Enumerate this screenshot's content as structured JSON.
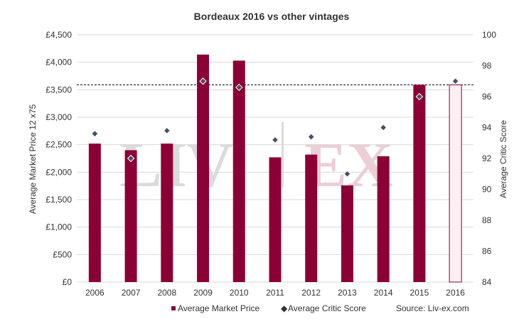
{
  "chart_data": {
    "type": "bar",
    "title": "Bordeaux 2016 vs other vintages",
    "categories": [
      "2006",
      "2007",
      "2008",
      "2009",
      "2010",
      "2011",
      "2012",
      "2013",
      "2014",
      "2015",
      "2016"
    ],
    "series": [
      {
        "name": "Average Market Price",
        "type": "bar",
        "axis": "left",
        "values": [
          2520,
          2400,
          2520,
          4140,
          4030,
          2270,
          2320,
          1760,
          2290,
          3590,
          3590
        ],
        "highlight_last": true
      },
      {
        "name": "Average Critic Score",
        "type": "scatter",
        "axis": "right",
        "values": [
          93.6,
          92.0,
          93.8,
          97.0,
          96.6,
          93.2,
          93.4,
          91.0,
          94.0,
          96.0,
          97.0
        ]
      }
    ],
    "reference_line": {
      "axis": "left",
      "value": 3590,
      "style": "dashed"
    },
    "y_left": {
      "label": "Average Market Price 12 x75",
      "range": [
        0,
        4500
      ],
      "ticks": [
        "£0",
        "£500",
        "£1,000",
        "£1,500",
        "£2,000",
        "£2,500",
        "£3,000",
        "£3,500",
        "£4,000",
        "£4,500"
      ]
    },
    "y_right": {
      "label": "Average Critic Score",
      "range": [
        84,
        100
      ],
      "ticks": [
        "84",
        "86",
        "88",
        "90",
        "92",
        "94",
        "96",
        "98",
        "100"
      ]
    },
    "grid": true,
    "legend_position": "bottom",
    "source": "Source: Liv-ex.com",
    "watermark": "LIV|EX"
  },
  "colors": {
    "bar": "#8B0035",
    "bar_highlight_fill": "#FBEFF3",
    "bar_highlight_stroke": "#8B0035",
    "marker": "#4A4D66",
    "grid": "#D9D9D9",
    "watermark_grey": "#D8D8D8",
    "watermark_pink": "#EBC9D3"
  }
}
